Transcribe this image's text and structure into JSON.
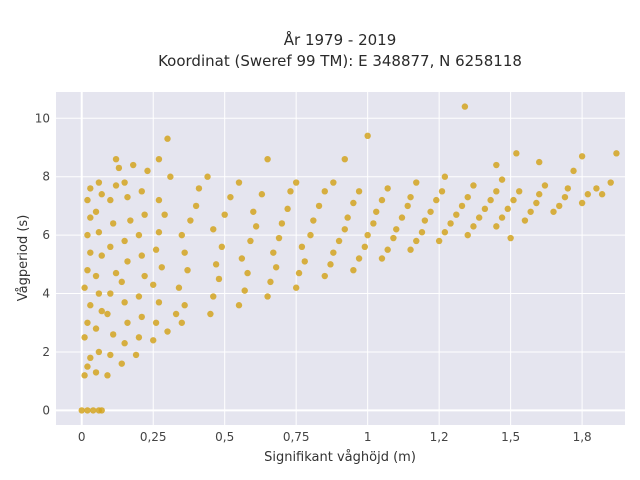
{
  "chart_data": {
    "type": "scatter",
    "title_line1": "År 1979 - 2019",
    "title_line2": "Koordinat (Sweref 99 TM): E 348877, N 6258118",
    "xlabel": "Signifikant våghöjd (m)",
    "ylabel": "Vågperiod (s)",
    "xlim": [
      -0.09,
      1.9
    ],
    "ylim": [
      -0.5,
      10.9
    ],
    "x_ticks": [
      {
        "v": 0,
        "label": "0"
      },
      {
        "v": 0.25,
        "label": "0,25"
      },
      {
        "v": 0.5,
        "label": "0,5"
      },
      {
        "v": 0.75,
        "label": "0,75"
      },
      {
        "v": 1,
        "label": "1"
      },
      {
        "v": 1.25,
        "label": "1,2"
      },
      {
        "v": 1.5,
        "label": "1,5"
      },
      {
        "v": 1.75,
        "label": "1,8"
      }
    ],
    "y_ticks": [
      {
        "v": 0,
        "label": "0"
      },
      {
        "v": 2,
        "label": "2"
      },
      {
        "v": 4,
        "label": "4"
      },
      {
        "v": 6,
        "label": "6"
      },
      {
        "v": 8,
        "label": "8"
      },
      {
        "v": 10,
        "label": "10"
      }
    ],
    "grid": true,
    "background_color": "#e5e5ef",
    "marker_color": "#d4a520",
    "series": [
      {
        "points": [
          [
            0,
            0
          ],
          [
            0.02,
            0
          ],
          [
            0.04,
            0
          ],
          [
            0.06,
            0
          ],
          [
            0.07,
            0
          ],
          [
            0.01,
            1.2
          ],
          [
            0.02,
            1.5
          ],
          [
            0.03,
            1.8
          ],
          [
            0.01,
            2.5
          ],
          [
            0.02,
            3.0
          ],
          [
            0.03,
            3.6
          ],
          [
            0.01,
            4.2
          ],
          [
            0.02,
            4.8
          ],
          [
            0.03,
            5.4
          ],
          [
            0.02,
            6.0
          ],
          [
            0.03,
            6.6
          ],
          [
            0.02,
            7.2
          ],
          [
            0.03,
            7.6
          ],
          [
            0.05,
            1.3
          ],
          [
            0.06,
            2.0
          ],
          [
            0.05,
            2.8
          ],
          [
            0.07,
            3.4
          ],
          [
            0.06,
            4.0
          ],
          [
            0.05,
            4.6
          ],
          [
            0.07,
            5.3
          ],
          [
            0.06,
            6.1
          ],
          [
            0.05,
            6.8
          ],
          [
            0.07,
            7.4
          ],
          [
            0.06,
            7.8
          ],
          [
            0.09,
            1.2
          ],
          [
            0.1,
            1.9
          ],
          [
            0.11,
            2.6
          ],
          [
            0.09,
            3.3
          ],
          [
            0.1,
            4.0
          ],
          [
            0.12,
            4.7
          ],
          [
            0.1,
            5.6
          ],
          [
            0.11,
            6.4
          ],
          [
            0.1,
            7.2
          ],
          [
            0.12,
            7.7
          ],
          [
            0.13,
            8.3
          ],
          [
            0.12,
            8.6
          ],
          [
            0.14,
            1.6
          ],
          [
            0.15,
            2.3
          ],
          [
            0.16,
            3.0
          ],
          [
            0.15,
            3.7
          ],
          [
            0.14,
            4.4
          ],
          [
            0.16,
            5.1
          ],
          [
            0.15,
            5.8
          ],
          [
            0.17,
            6.5
          ],
          [
            0.16,
            7.3
          ],
          [
            0.15,
            7.8
          ],
          [
            0.18,
            8.4
          ],
          [
            0.19,
            1.9
          ],
          [
            0.2,
            2.5
          ],
          [
            0.21,
            3.2
          ],
          [
            0.2,
            3.9
          ],
          [
            0.22,
            4.6
          ],
          [
            0.21,
            5.3
          ],
          [
            0.2,
            6.0
          ],
          [
            0.22,
            6.7
          ],
          [
            0.21,
            7.5
          ],
          [
            0.23,
            8.2
          ],
          [
            0.27,
            8.6
          ],
          [
            0.3,
            9.3
          ],
          [
            0.25,
            2.4
          ],
          [
            0.26,
            3.0
          ],
          [
            0.27,
            3.7
          ],
          [
            0.25,
            4.3
          ],
          [
            0.28,
            4.9
          ],
          [
            0.26,
            5.5
          ],
          [
            0.27,
            6.1
          ],
          [
            0.29,
            6.7
          ],
          [
            0.27,
            7.2
          ],
          [
            0.31,
            8.0
          ],
          [
            0.3,
            2.7
          ],
          [
            0.33,
            3.3
          ],
          [
            0.35,
            3.0
          ],
          [
            0.36,
            3.6
          ],
          [
            0.34,
            4.2
          ],
          [
            0.37,
            4.8
          ],
          [
            0.36,
            5.4
          ],
          [
            0.35,
            6.0
          ],
          [
            0.38,
            6.5
          ],
          [
            0.4,
            7.0
          ],
          [
            0.41,
            7.6
          ],
          [
            0.44,
            8.0
          ],
          [
            0.45,
            3.3
          ],
          [
            0.46,
            3.9
          ],
          [
            0.48,
            4.5
          ],
          [
            0.47,
            5.0
          ],
          [
            0.49,
            5.6
          ],
          [
            0.46,
            6.2
          ],
          [
            0.5,
            6.7
          ],
          [
            0.52,
            7.3
          ],
          [
            0.55,
            7.8
          ],
          [
            0.55,
            3.6
          ],
          [
            0.57,
            4.1
          ],
          [
            0.58,
            4.7
          ],
          [
            0.56,
            5.2
          ],
          [
            0.59,
            5.8
          ],
          [
            0.61,
            6.3
          ],
          [
            0.6,
            6.8
          ],
          [
            0.63,
            7.4
          ],
          [
            0.65,
            8.6
          ],
          [
            0.65,
            3.9
          ],
          [
            0.66,
            4.4
          ],
          [
            0.68,
            4.9
          ],
          [
            0.67,
            5.4
          ],
          [
            0.69,
            5.9
          ],
          [
            0.7,
            6.4
          ],
          [
            0.72,
            6.9
          ],
          [
            0.73,
            7.5
          ],
          [
            0.75,
            7.8
          ],
          [
            0.75,
            4.2
          ],
          [
            0.76,
            4.7
          ],
          [
            0.78,
            5.1
          ],
          [
            0.77,
            5.6
          ],
          [
            0.8,
            6.0
          ],
          [
            0.81,
            6.5
          ],
          [
            0.83,
            7.0
          ],
          [
            0.85,
            7.5
          ],
          [
            0.88,
            7.8
          ],
          [
            0.85,
            4.6
          ],
          [
            0.87,
            5.0
          ],
          [
            0.88,
            5.4
          ],
          [
            0.9,
            5.8
          ],
          [
            0.92,
            6.2
          ],
          [
            0.93,
            6.6
          ],
          [
            0.95,
            7.1
          ],
          [
            0.97,
            7.5
          ],
          [
            0.92,
            8.6
          ],
          [
            0.95,
            4.8
          ],
          [
            0.97,
            5.2
          ],
          [
            0.99,
            5.6
          ],
          [
            1.0,
            6.0
          ],
          [
            1.02,
            6.4
          ],
          [
            1.03,
            6.8
          ],
          [
            1.05,
            7.2
          ],
          [
            1.07,
            7.6
          ],
          [
            1.0,
            9.4
          ],
          [
            1.05,
            5.2
          ],
          [
            1.07,
            5.5
          ],
          [
            1.09,
            5.9
          ],
          [
            1.1,
            6.2
          ],
          [
            1.12,
            6.6
          ],
          [
            1.14,
            7.0
          ],
          [
            1.15,
            7.3
          ],
          [
            1.17,
            7.8
          ],
          [
            1.15,
            5.5
          ],
          [
            1.17,
            5.8
          ],
          [
            1.19,
            6.1
          ],
          [
            1.2,
            6.5
          ],
          [
            1.22,
            6.8
          ],
          [
            1.24,
            7.2
          ],
          [
            1.26,
            7.5
          ],
          [
            1.27,
            8.0
          ],
          [
            1.25,
            5.8
          ],
          [
            1.27,
            6.1
          ],
          [
            1.29,
            6.4
          ],
          [
            1.31,
            6.7
          ],
          [
            1.33,
            7.0
          ],
          [
            1.35,
            7.3
          ],
          [
            1.37,
            7.7
          ],
          [
            1.34,
            10.4
          ],
          [
            1.35,
            6.0
          ],
          [
            1.37,
            6.3
          ],
          [
            1.39,
            6.6
          ],
          [
            1.41,
            6.9
          ],
          [
            1.43,
            7.2
          ],
          [
            1.45,
            7.5
          ],
          [
            1.47,
            7.9
          ],
          [
            1.45,
            8.4
          ],
          [
            1.45,
            6.3
          ],
          [
            1.47,
            6.6
          ],
          [
            1.49,
            6.9
          ],
          [
            1.51,
            7.2
          ],
          [
            1.53,
            7.5
          ],
          [
            1.52,
            8.8
          ],
          [
            1.5,
            5.9
          ],
          [
            1.55,
            6.5
          ],
          [
            1.57,
            6.8
          ],
          [
            1.59,
            7.1
          ],
          [
            1.6,
            7.4
          ],
          [
            1.62,
            7.7
          ],
          [
            1.6,
            8.5
          ],
          [
            1.65,
            6.8
          ],
          [
            1.67,
            7.0
          ],
          [
            1.69,
            7.3
          ],
          [
            1.7,
            7.6
          ],
          [
            1.72,
            8.2
          ],
          [
            1.75,
            8.7
          ],
          [
            1.75,
            7.1
          ],
          [
            1.77,
            7.4
          ],
          [
            1.8,
            7.6
          ],
          [
            1.82,
            7.4
          ],
          [
            1.85,
            7.8
          ],
          [
            1.87,
            8.8
          ]
        ]
      }
    ]
  }
}
